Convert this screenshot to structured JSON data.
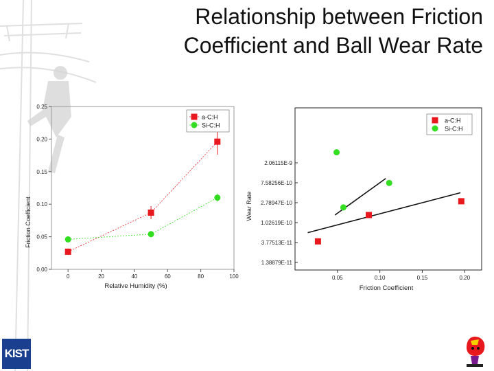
{
  "title": {
    "line1": "Relationship between Friction",
    "line2": "Coefficient and Ball Wear Rate"
  },
  "logos": {
    "left_text": "KIST",
    "right_icon": "mascot-icon",
    "background_icon": "lineman-on-pole-icon"
  },
  "colors": {
    "series_a": "#e8191e",
    "series_b": "#33dd22",
    "frame": "#000000"
  },
  "chart_data": [
    {
      "type": "scatter",
      "title": "",
      "xlabel": "Relative Humidity (%)",
      "ylabel": "Friction Coefficient",
      "xlim": [
        -10,
        100
      ],
      "ylim": [
        0,
        0.25
      ],
      "x_ticks": [
        "0",
        "20",
        "40",
        "60",
        "80",
        "100"
      ],
      "y_ticks": [
        "0.00",
        "0.05",
        "0.10",
        "0.15",
        "0.20",
        "0.25"
      ],
      "legend_position": "top-right",
      "connect_points": "dashed",
      "series": [
        {
          "name": "a-C:H",
          "marker": "square",
          "x": [
            0,
            50,
            90
          ],
          "y": [
            0.027,
            0.087,
            0.196
          ],
          "err": [
            0.005,
            0.01,
            0.02
          ]
        },
        {
          "name": "Si-C:H",
          "marker": "circle",
          "x": [
            0,
            50,
            90
          ],
          "y": [
            0.046,
            0.054,
            0.11
          ],
          "err": [
            0.004,
            0.003,
            0.006
          ]
        }
      ]
    },
    {
      "type": "scatter",
      "title": "",
      "xlabel": "Friction Coefficient",
      "ylabel": "Wear Rate",
      "xlim": [
        0,
        0.22
      ],
      "y_scale": "log",
      "y_ticks": [
        "1.38879E-11",
        "3.77513E-11",
        "1.02619E-10",
        "2.78947E-10",
        "7.58256E-10",
        "2.06115E-9"
      ],
      "x_ticks": [
        "0.05",
        "0.10",
        "0.15",
        "0.20"
      ],
      "legend_position": "top-right",
      "series": [
        {
          "name": "a-C:H",
          "marker": "square",
          "x": [
            0.027,
            0.087,
            0.196
          ],
          "y": [
            4e-11,
            1.5e-10,
            3e-10
          ]
        },
        {
          "name": "Si-C:H",
          "marker": "circle",
          "x": [
            0.049,
            0.057,
            0.111
          ],
          "y": [
            3.5e-09,
            2.2e-10,
            7.5e-10
          ]
        }
      ]
    }
  ]
}
